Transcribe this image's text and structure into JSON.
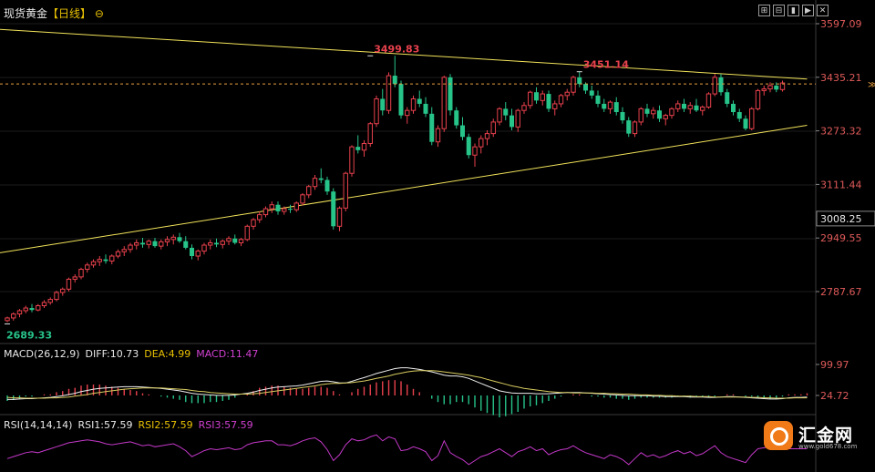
{
  "header": {
    "name": "现货黄金",
    "bracket_open": "【",
    "period": "日线",
    "bracket_close": "】",
    "icon": "circle-minus-icon"
  },
  "toolbar": {
    "buttons": [
      "⊞",
      "⊟",
      "▮",
      "▶",
      "✕"
    ]
  },
  "main_axis": {
    "ticks": [
      "3597.09",
      "3435.21",
      "3273.32",
      "3111.44",
      "2949.55",
      "2787.67"
    ],
    "current_price": "3008.25"
  },
  "annotations": {
    "high1": "3499.83",
    "high2": "3451.14",
    "low": "2689.33"
  },
  "macd": {
    "label": "MACD(26,12,9)",
    "diff": "DIFF:10.73",
    "dea": "DEA:4.99",
    "macd": "MACD:11.47",
    "ticks": [
      "99.97",
      "24.72"
    ]
  },
  "rsi": {
    "label": "RSI(14,14,14)",
    "rsi1": "RSI1:57.59",
    "rsi2": "RSI2:57.59",
    "rsi3": "RSI3:57.59"
  },
  "logo": {
    "name": "汇金网",
    "url": "www.gold678.com"
  },
  "colors": {
    "up": "#e8414d",
    "down": "#27c48a",
    "trend": "#f2e35a",
    "dea": "#d8cc60",
    "rsi": "#c338c8",
    "macd": "#c338c8",
    "dashed": "#e8a040"
  },
  "chart_data": {
    "type": "candlestick",
    "ylim": [
      2660,
      3620
    ],
    "trendlines": [
      {
        "name": "",
        "points": [
          [
            0,
            3580
          ],
          [
            130,
            3430
          ]
        ]
      },
      {
        "name": "",
        "points": [
          [
            0,
            2905
          ],
          [
            130,
            3290
          ]
        ]
      }
    ],
    "candles": [
      [
        2700,
        2712,
        2695,
        2708
      ],
      [
        2708,
        2725,
        2700,
        2720
      ],
      [
        2720,
        2735,
        2710,
        2730
      ],
      [
        2730,
        2745,
        2722,
        2738
      ],
      [
        2738,
        2750,
        2725,
        2732
      ],
      [
        2732,
        2750,
        2728,
        2745
      ],
      [
        2745,
        2762,
        2738,
        2755
      ],
      [
        2755,
        2770,
        2748,
        2764
      ],
      [
        2764,
        2790,
        2758,
        2785
      ],
      [
        2785,
        2800,
        2775,
        2795
      ],
      [
        2795,
        2830,
        2788,
        2825
      ],
      [
        2825,
        2840,
        2815,
        2832
      ],
      [
        2832,
        2860,
        2825,
        2855
      ],
      [
        2855,
        2875,
        2845,
        2868
      ],
      [
        2868,
        2885,
        2860,
        2878
      ],
      [
        2878,
        2895,
        2865,
        2885
      ],
      [
        2885,
        2900,
        2872,
        2880
      ],
      [
        2880,
        2900,
        2870,
        2895
      ],
      [
        2895,
        2915,
        2888,
        2908
      ],
      [
        2908,
        2925,
        2895,
        2915
      ],
      [
        2915,
        2935,
        2905,
        2928
      ],
      [
        2928,
        2945,
        2915,
        2935
      ],
      [
        2935,
        2950,
        2920,
        2930
      ],
      [
        2930,
        2945,
        2918,
        2940
      ],
      [
        2940,
        2950,
        2920,
        2925
      ],
      [
        2925,
        2945,
        2915,
        2938
      ],
      [
        2938,
        2955,
        2925,
        2945
      ],
      [
        2945,
        2960,
        2930,
        2952
      ],
      [
        2952,
        2965,
        2935,
        2940
      ],
      [
        2940,
        2955,
        2915,
        2920
      ],
      [
        2920,
        2930,
        2885,
        2895
      ],
      [
        2895,
        2915,
        2882,
        2910
      ],
      [
        2910,
        2935,
        2900,
        2928
      ],
      [
        2928,
        2945,
        2915,
        2935
      ],
      [
        2935,
        2948,
        2922,
        2930
      ],
      [
        2930,
        2945,
        2918,
        2940
      ],
      [
        2940,
        2955,
        2928,
        2948
      ],
      [
        2948,
        2960,
        2930,
        2935
      ],
      [
        2935,
        2950,
        2925,
        2945
      ],
      [
        2945,
        2990,
        2940,
        2985
      ],
      [
        2985,
        3010,
        2975,
        3005
      ],
      [
        3005,
        3030,
        2995,
        3020
      ],
      [
        3020,
        3045,
        3012,
        3038
      ],
      [
        3038,
        3060,
        3025,
        3050
      ],
      [
        3050,
        3060,
        3020,
        3030
      ],
      [
        3030,
        3045,
        3020,
        3038
      ],
      [
        3038,
        3050,
        3025,
        3035
      ],
      [
        3035,
        3060,
        3028,
        3055
      ],
      [
        3055,
        3085,
        3048,
        3080
      ],
      [
        3080,
        3110,
        3070,
        3105
      ],
      [
        3105,
        3140,
        3095,
        3130
      ],
      [
        3130,
        3160,
        3115,
        3125
      ],
      [
        3125,
        3135,
        3080,
        3090
      ],
      [
        3090,
        3100,
        2975,
        2985
      ],
      [
        2985,
        3045,
        2970,
        3040
      ],
      [
        3040,
        3150,
        3030,
        3145
      ],
      [
        3145,
        3230,
        3135,
        3225
      ],
      [
        3225,
        3260,
        3205,
        3215
      ],
      [
        3215,
        3245,
        3195,
        3235
      ],
      [
        3235,
        3300,
        3225,
        3295
      ],
      [
        3295,
        3380,
        3285,
        3370
      ],
      [
        3370,
        3400,
        3320,
        3335
      ],
      [
        3335,
        3450,
        3325,
        3440
      ],
      [
        3440,
        3500,
        3405,
        3415
      ],
      [
        3415,
        3425,
        3310,
        3320
      ],
      [
        3320,
        3345,
        3295,
        3335
      ],
      [
        3335,
        3380,
        3325,
        3370
      ],
      [
        3370,
        3395,
        3345,
        3355
      ],
      [
        3355,
        3375,
        3315,
        3325
      ],
      [
        3325,
        3345,
        3230,
        3240
      ],
      [
        3240,
        3290,
        3225,
        3280
      ],
      [
        3280,
        3440,
        3270,
        3435
      ],
      [
        3435,
        3445,
        3320,
        3335
      ],
      [
        3335,
        3345,
        3280,
        3290
      ],
      [
        3290,
        3315,
        3245,
        3255
      ],
      [
        3255,
        3265,
        3190,
        3200
      ],
      [
        3200,
        3235,
        3165,
        3225
      ],
      [
        3225,
        3260,
        3205,
        3250
      ],
      [
        3250,
        3275,
        3230,
        3265
      ],
      [
        3265,
        3310,
        3255,
        3300
      ],
      [
        3300,
        3345,
        3290,
        3340
      ],
      [
        3340,
        3360,
        3305,
        3320
      ],
      [
        3320,
        3340,
        3275,
        3285
      ],
      [
        3285,
        3340,
        3270,
        3335
      ],
      [
        3335,
        3360,
        3325,
        3350
      ],
      [
        3350,
        3395,
        3340,
        3390
      ],
      [
        3390,
        3405,
        3355,
        3365
      ],
      [
        3365,
        3395,
        3350,
        3385
      ],
      [
        3385,
        3395,
        3330,
        3340
      ],
      [
        3340,
        3365,
        3320,
        3355
      ],
      [
        3355,
        3385,
        3345,
        3380
      ],
      [
        3380,
        3400,
        3365,
        3390
      ],
      [
        3390,
        3440,
        3380,
        3435
      ],
      [
        3435,
        3452,
        3405,
        3415
      ],
      [
        3415,
        3420,
        3385,
        3395
      ],
      [
        3395,
        3410,
        3370,
        3380
      ],
      [
        3380,
        3395,
        3345,
        3355
      ],
      [
        3355,
        3370,
        3330,
        3340
      ],
      [
        3340,
        3365,
        3325,
        3360
      ],
      [
        3360,
        3375,
        3320,
        3330
      ],
      [
        3330,
        3345,
        3295,
        3305
      ],
      [
        3305,
        3315,
        3255,
        3265
      ],
      [
        3265,
        3305,
        3255,
        3300
      ],
      [
        3300,
        3345,
        3290,
        3340
      ],
      [
        3340,
        3355,
        3315,
        3325
      ],
      [
        3325,
        3345,
        3310,
        3335
      ],
      [
        3335,
        3350,
        3300,
        3310
      ],
      [
        3310,
        3325,
        3290,
        3320
      ],
      [
        3320,
        3345,
        3310,
        3340
      ],
      [
        3340,
        3365,
        3330,
        3355
      ],
      [
        3355,
        3370,
        3330,
        3340
      ],
      [
        3340,
        3360,
        3325,
        3350
      ],
      [
        3350,
        3370,
        3330,
        3335
      ],
      [
        3335,
        3350,
        3320,
        3345
      ],
      [
        3345,
        3390,
        3340,
        3385
      ],
      [
        3385,
        3445,
        3378,
        3435
      ],
      [
        3435,
        3445,
        3380,
        3390
      ],
      [
        3390,
        3400,
        3345,
        3355
      ],
      [
        3355,
        3365,
        3320,
        3330
      ],
      [
        3330,
        3340,
        3300,
        3310
      ],
      [
        3310,
        3320,
        3275,
        3280
      ],
      [
        3280,
        3345,
        3275,
        3340
      ],
      [
        3340,
        3400,
        3335,
        3395
      ],
      [
        3395,
        3410,
        3380,
        3400
      ],
      [
        3400,
        3420,
        3390,
        3410
      ],
      [
        3410,
        3420,
        3390,
        3398
      ],
      [
        3398,
        3425,
        3392,
        3418
      ]
    ],
    "macd": {
      "dif": [
        15,
        15,
        16,
        17,
        17,
        18,
        19,
        20,
        22,
        24,
        27,
        30,
        34,
        37,
        40,
        42,
        43,
        44,
        45,
        46,
        46,
        46,
        45,
        44,
        43,
        42,
        40,
        38,
        36,
        33,
        30,
        28,
        27,
        26,
        25,
        25,
        25,
        26,
        28,
        30,
        33,
        37,
        40,
        43,
        45,
        46,
        47,
        48,
        50,
        53,
        56,
        59,
        60,
        58,
        55,
        55,
        59,
        64,
        68,
        73,
        78,
        82,
        86,
        90,
        92,
        92,
        90,
        88,
        85,
        82,
        78,
        74,
        72,
        72,
        70,
        66,
        60,
        54,
        48,
        42,
        36,
        33,
        31,
        30,
        30,
        30,
        29,
        29,
        29,
        30,
        31,
        32,
        32,
        32,
        31,
        30,
        29,
        28,
        27,
        26,
        25,
        24,
        24,
        24,
        24,
        23,
        23,
        22,
        22,
        22,
        22,
        21,
        21,
        21,
        20,
        20,
        21,
        22,
        22,
        21,
        20,
        19,
        18,
        17,
        16,
        16,
        17,
        19,
        20,
        20,
        21
      ],
      "dea": [
        20,
        19,
        19,
        18,
        18,
        18,
        18,
        19,
        19,
        20,
        21,
        23,
        25,
        27,
        30,
        32,
        34,
        36,
        38,
        40,
        41,
        42,
        43,
        43,
        43,
        43,
        42,
        41,
        40,
        39,
        37,
        35,
        34,
        32,
        31,
        30,
        29,
        28,
        28,
        28,
        29,
        30,
        32,
        34,
        36,
        38,
        40,
        42,
        44,
        46,
        48,
        51,
        53,
        54,
        54,
        55,
        56,
        58,
        60,
        63,
        66,
        69,
        72,
        76,
        79,
        82,
        84,
        85,
        85,
        85,
        84,
        82,
        80,
        78,
        76,
        74,
        71,
        68,
        64,
        60,
        56,
        52,
        48,
        45,
        42,
        40,
        38,
        36,
        34,
        33,
        32,
        32,
        31,
        31,
        31,
        31,
        30,
        30,
        29,
        29,
        28,
        28,
        27,
        26,
        26,
        25,
        25,
        24,
        24,
        23,
        23,
        23,
        22,
        22,
        22,
        21,
        21,
        21,
        21,
        21,
        21,
        20,
        20,
        19,
        19,
        18,
        18,
        18,
        19,
        19,
        19
      ]
    },
    "rsi": [
      48,
      50,
      52,
      54,
      55,
      54,
      56,
      58,
      60,
      62,
      64,
      65,
      66,
      67,
      66,
      65,
      63,
      62,
      63,
      64,
      65,
      63,
      61,
      62,
      60,
      61,
      62,
      63,
      60,
      56,
      50,
      53,
      56,
      58,
      57,
      58,
      59,
      57,
      58,
      62,
      64,
      65,
      66,
      66,
      62,
      62,
      61,
      63,
      66,
      68,
      69,
      65,
      57,
      46,
      52,
      62,
      68,
      66,
      67,
      70,
      72,
      66,
      70,
      68,
      56,
      57,
      60,
      58,
      55,
      46,
      51,
      66,
      54,
      50,
      47,
      42,
      46,
      50,
      52,
      55,
      58,
      54,
      50,
      55,
      57,
      60,
      56,
      58,
      52,
      55,
      57,
      58,
      61,
      57,
      54,
      52,
      50,
      48,
      52,
      50,
      47,
      42,
      48,
      54,
      50,
      52,
      49,
      51,
      54,
      56,
      53,
      55,
      51,
      53,
      57,
      61,
      54,
      50,
      48,
      46,
      44,
      52,
      58,
      59,
      60,
      58,
      59,
      58,
      58,
      58,
      58
    ]
  }
}
